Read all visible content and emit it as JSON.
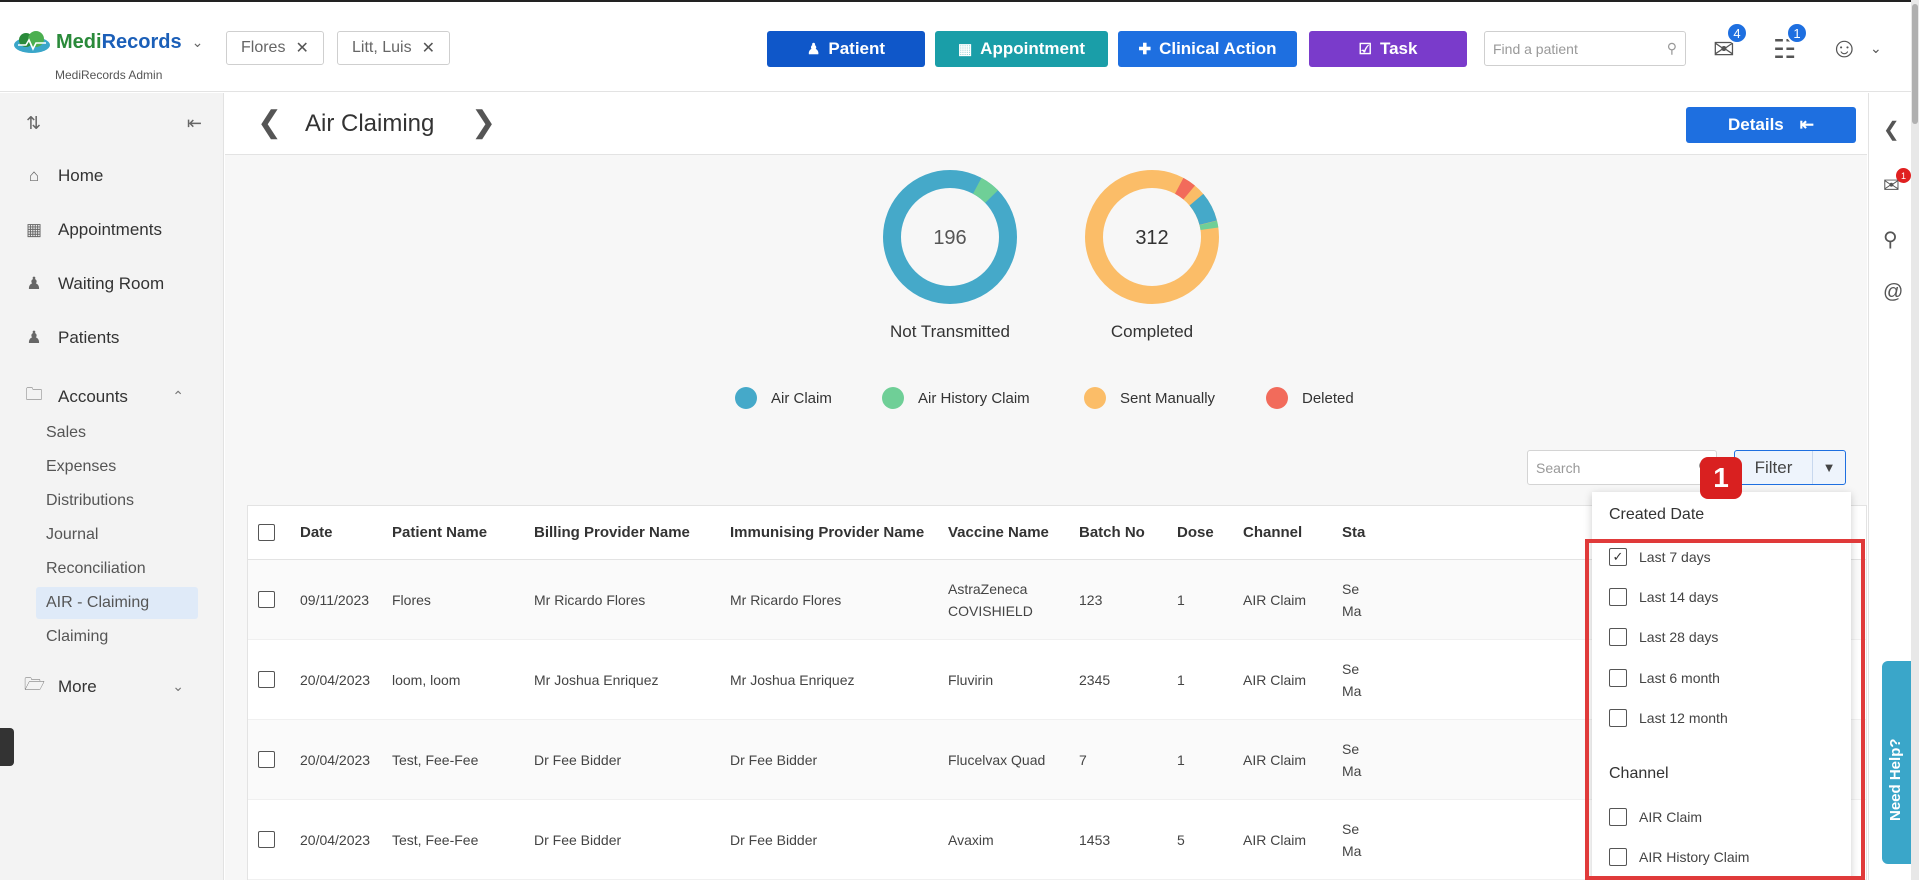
{
  "header": {
    "brand_medi": "Medi",
    "brand_records": "Records",
    "brand_sub": "MediRecords Admin",
    "open_tabs": [
      {
        "label": "Flores"
      },
      {
        "label": "Litt, Luis"
      }
    ],
    "actions": {
      "patient": "Patient",
      "appointment": "Appointment",
      "clinical_action": "Clinical Action",
      "task": "Task"
    },
    "search_placeholder": "Find a patient",
    "mail_count": "4",
    "tasks_count": "1",
    "colors": {
      "patient": "#0f57c9",
      "appointment": "#1a9ea8",
      "clinical_action": "#1e6fe0",
      "task": "#7a3bcb"
    }
  },
  "sidebar": {
    "items": {
      "home": "Home",
      "appointments": "Appointments",
      "waiting_room": "Waiting Room",
      "patients": "Patients",
      "accounts": "Accounts",
      "more": "More"
    },
    "accounts_sub": [
      "Sales",
      "Expenses",
      "Distributions",
      "Journal",
      "Reconciliation",
      "AIR - Claiming",
      "Claiming"
    ],
    "active_sub": "AIR - Claiming"
  },
  "page": {
    "title": "Air Claiming",
    "details_label": "Details"
  },
  "summary": {
    "donuts": [
      {
        "value": "196",
        "label": "Not Transmitted"
      },
      {
        "value": "312",
        "label": "Completed"
      }
    ],
    "legend": [
      {
        "label": "Air Claim",
        "color": "#45a9c9"
      },
      {
        "label": "Air History Claim",
        "color": "#6fcf97"
      },
      {
        "label": "Sent Manually",
        "color": "#fbbd68"
      },
      {
        "label": "Deleted",
        "color": "#f26b5b"
      }
    ]
  },
  "toolbar": {
    "search_placeholder": "Search",
    "filter_label": "Filter"
  },
  "table": {
    "columns": [
      "Date",
      "Patient Name",
      "Billing Provider Name",
      "Immunising Provider Name",
      "Vaccine Name",
      "Batch No",
      "Dose",
      "Channel",
      "Sta"
    ],
    "rows": [
      {
        "date": "09/11/2023",
        "patient": "Flores",
        "billing": "Mr Ricardo Flores",
        "immunising": "Mr Ricardo Flores",
        "vaccine": "AstraZeneca COVISHIELD",
        "batch": "123",
        "dose": "1",
        "channel": "AIR Claim",
        "status": "Se Ma"
      },
      {
        "date": "20/04/2023",
        "patient": "loom, loom",
        "billing": "Mr Joshua Enriquez",
        "immunising": "Mr Joshua Enriquez",
        "vaccine": "Fluvirin",
        "batch": "2345",
        "dose": "1",
        "channel": "AIR Claim",
        "status": "Se Ma"
      },
      {
        "date": "20/04/2023",
        "patient": "Test, Fee-Fee",
        "billing": "Dr Fee Bidder",
        "immunising": "Dr Fee Bidder",
        "vaccine": "Flucelvax Quad",
        "batch": "7",
        "dose": "1",
        "channel": "AIR Claim",
        "status": "Se Ma"
      },
      {
        "date": "20/04/2023",
        "patient": "Test, Fee-Fee",
        "billing": "Dr Fee Bidder",
        "immunising": "Dr Fee Bidder",
        "vaccine": "Avaxim",
        "batch": "1453",
        "dose": "5",
        "channel": "AIR Claim",
        "status": "Se Ma"
      }
    ]
  },
  "filter_dropdown": {
    "created_date_title": "Created Date",
    "created_date_options": [
      {
        "label": "Last 7 days",
        "checked": true
      },
      {
        "label": "Last 14 days",
        "checked": false
      },
      {
        "label": "Last 28 days",
        "checked": false
      },
      {
        "label": "Last 6 month",
        "checked": false
      },
      {
        "label": "Last 12 month",
        "checked": false
      }
    ],
    "channel_title": "Channel",
    "channel_options": [
      {
        "label": "AIR Claim",
        "checked": false
      },
      {
        "label": "AIR History Claim",
        "checked": false
      }
    ]
  },
  "annotation": {
    "step": "1"
  },
  "rail": {
    "chat_badge": "1"
  },
  "help": {
    "label": "Need Help?"
  }
}
